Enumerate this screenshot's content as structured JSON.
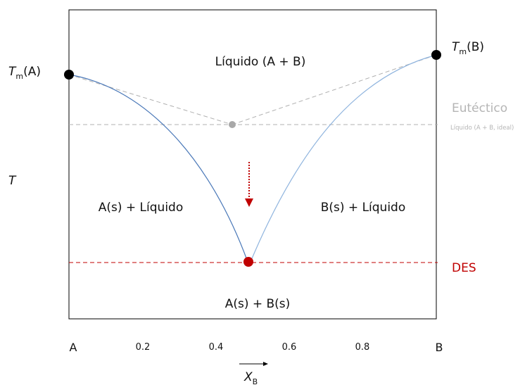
{
  "diagram": {
    "regions": {
      "liquid": "Líquido (A + B)",
      "a_liquid": "A(s) + Líquido",
      "b_liquid": "B(s) + Líquido",
      "solids": "A(s) + B(s)"
    },
    "tm_a": {
      "sym": "T",
      "sub": "m",
      "suffix": "(A)"
    },
    "tm_b": {
      "sym": "T",
      "sub": "m",
      "suffix": "(B)"
    },
    "y_axis_label": "T",
    "eutectic_label": "Eutéctico",
    "eutectic_note": "Líquido (A + B, ideal)",
    "des_label": "DES",
    "x_ticks": [
      "A",
      "0.2",
      "0.4",
      "0.6",
      "0.8",
      "B"
    ],
    "x_axis": {
      "sym": "X",
      "sub": "B"
    },
    "colors": {
      "frame": "#000000",
      "liquidus_a": "#4a78b8",
      "liquidus_b": "#8fb4de",
      "ideal": "#b0b0b0",
      "des": "#c00000",
      "arrow": "#c00000"
    }
  }
}
